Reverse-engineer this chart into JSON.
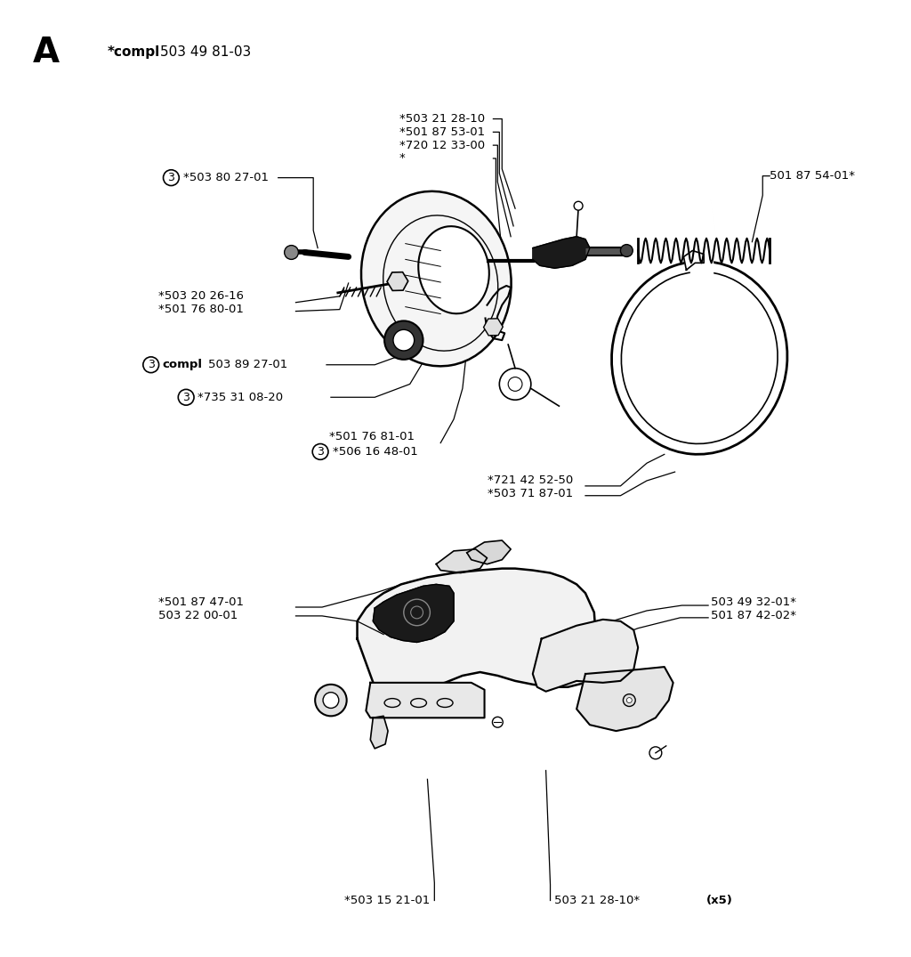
{
  "title": "A",
  "compl_bold": "*compl",
  "compl_normal": " 503 49 81-03",
  "bg_color": "#ffffff",
  "text_color": "#000000",
  "figsize": [
    10.24,
    10.75
  ],
  "dpi": 100
}
